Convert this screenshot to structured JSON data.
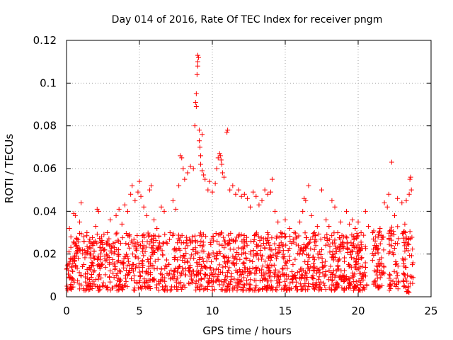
{
  "chart_data": {
    "type": "scatter",
    "title": "Day 014 of 2016, Rate Of TEC Index for receiver pngm",
    "xlabel": "GPS time / hours",
    "ylabel": "ROTI / TECUs",
    "xlim": [
      0,
      25
    ],
    "ylim": [
      0,
      0.12
    ],
    "xticks": [
      0,
      5,
      10,
      15,
      20,
      25
    ],
    "xtick_labels": [
      "0",
      "5",
      "10",
      "15",
      "20",
      "25"
    ],
    "yticks": [
      0,
      0.02,
      0.04,
      0.06,
      0.08,
      0.1,
      0.12
    ],
    "ytick_labels": [
      "0",
      "0.02",
      "0.04",
      "0.06",
      "0.08",
      "0.1",
      "0.12"
    ],
    "grid": true,
    "marker": "+",
    "series": [
      {
        "name": "ROTI",
        "color": "#ff0000",
        "points": [
          [
            0.1,
            0.015
          ],
          [
            0.2,
            0.032
          ],
          [
            0.3,
            0.028
          ],
          [
            0.4,
            0.012
          ],
          [
            0.5,
            0.039
          ],
          [
            0.6,
            0.038
          ],
          [
            0.7,
            0.024
          ],
          [
            0.8,
            0.018
          ],
          [
            0.9,
            0.035
          ],
          [
            1.0,
            0.044
          ],
          [
            1.1,
            0.022
          ],
          [
            1.2,
            0.026
          ],
          [
            1.4,
            0.03
          ],
          [
            1.6,
            0.02
          ],
          [
            1.8,
            0.024
          ],
          [
            2.0,
            0.033
          ],
          [
            2.1,
            0.041
          ],
          [
            2.2,
            0.04
          ],
          [
            2.4,
            0.028
          ],
          [
            2.6,
            0.022
          ],
          [
            2.8,
            0.03
          ],
          [
            3.0,
            0.036
          ],
          [
            3.2,
            0.025
          ],
          [
            3.4,
            0.038
          ],
          [
            3.6,
            0.041
          ],
          [
            3.8,
            0.034
          ],
          [
            4.0,
            0.043
          ],
          [
            4.2,
            0.04
          ],
          [
            4.4,
            0.048
          ],
          [
            4.5,
            0.052
          ],
          [
            4.7,
            0.045
          ],
          [
            4.9,
            0.049
          ],
          [
            5.0,
            0.054
          ],
          [
            5.1,
            0.047
          ],
          [
            5.3,
            0.042
          ],
          [
            5.5,
            0.038
          ],
          [
            5.7,
            0.05
          ],
          [
            5.8,
            0.052
          ],
          [
            6.0,
            0.036
          ],
          [
            6.2,
            0.032
          ],
          [
            6.5,
            0.042
          ],
          [
            6.7,
            0.04
          ],
          [
            6.9,
            0.025
          ],
          [
            7.1,
            0.03
          ],
          [
            7.3,
            0.045
          ],
          [
            7.5,
            0.041
          ],
          [
            7.7,
            0.052
          ],
          [
            7.8,
            0.066
          ],
          [
            7.9,
            0.065
          ],
          [
            8.0,
            0.06
          ],
          [
            8.1,
            0.055
          ],
          [
            8.3,
            0.058
          ],
          [
            8.5,
            0.061
          ],
          [
            8.7,
            0.06
          ],
          [
            8.8,
            0.08
          ],
          [
            8.85,
            0.091
          ],
          [
            8.9,
            0.089
          ],
          [
            8.9,
            0.095
          ],
          [
            8.95,
            0.104
          ],
          [
            9.0,
            0.108
          ],
          [
            9.0,
            0.11
          ],
          [
            9.0,
            0.113
          ],
          [
            9.05,
            0.112
          ],
          [
            9.1,
            0.078
          ],
          [
            9.1,
            0.073
          ],
          [
            9.15,
            0.07
          ],
          [
            9.2,
            0.066
          ],
          [
            9.2,
            0.062
          ],
          [
            9.3,
            0.076
          ],
          [
            9.3,
            0.059
          ],
          [
            9.4,
            0.057
          ],
          [
            9.5,
            0.055
          ],
          [
            9.7,
            0.05
          ],
          [
            9.8,
            0.054
          ],
          [
            10.0,
            0.049
          ],
          [
            10.2,
            0.053
          ],
          [
            10.3,
            0.06
          ],
          [
            10.4,
            0.065
          ],
          [
            10.5,
            0.067
          ],
          [
            10.55,
            0.066
          ],
          [
            10.6,
            0.064
          ],
          [
            10.65,
            0.062
          ],
          [
            10.7,
            0.058
          ],
          [
            10.8,
            0.056
          ],
          [
            11.0,
            0.077
          ],
          [
            11.05,
            0.078
          ],
          [
            11.2,
            0.05
          ],
          [
            11.4,
            0.052
          ],
          [
            11.6,
            0.048
          ],
          [
            11.8,
            0.05
          ],
          [
            12.0,
            0.047
          ],
          [
            12.2,
            0.048
          ],
          [
            12.4,
            0.046
          ],
          [
            12.6,
            0.042
          ],
          [
            12.8,
            0.049
          ],
          [
            13.0,
            0.047
          ],
          [
            13.2,
            0.043
          ],
          [
            13.4,
            0.045
          ],
          [
            13.6,
            0.05
          ],
          [
            13.8,
            0.048
          ],
          [
            14.0,
            0.049
          ],
          [
            14.1,
            0.055
          ],
          [
            14.3,
            0.04
          ],
          [
            14.5,
            0.035
          ],
          [
            14.7,
            0.03
          ],
          [
            15.0,
            0.036
          ],
          [
            15.3,
            0.032
          ],
          [
            15.6,
            0.03
          ],
          [
            15.8,
            0.028
          ],
          [
            16.0,
            0.035
          ],
          [
            16.2,
            0.04
          ],
          [
            16.3,
            0.046
          ],
          [
            16.4,
            0.045
          ],
          [
            16.6,
            0.052
          ],
          [
            16.8,
            0.038
          ],
          [
            17.0,
            0.03
          ],
          [
            17.2,
            0.033
          ],
          [
            17.5,
            0.05
          ],
          [
            17.8,
            0.036
          ],
          [
            18.0,
            0.033
          ],
          [
            18.2,
            0.045
          ],
          [
            18.4,
            0.042
          ],
          [
            18.6,
            0.03
          ],
          [
            18.8,
            0.035
          ],
          [
            19.0,
            0.028
          ],
          [
            19.2,
            0.04
          ],
          [
            19.4,
            0.034
          ],
          [
            19.6,
            0.036
          ],
          [
            19.8,
            0.032
          ],
          [
            20.0,
            0.035
          ],
          [
            20.2,
            0.03
          ],
          [
            20.5,
            0.04
          ],
          [
            20.7,
            0.033
          ],
          [
            21.0,
            0.03
          ],
          [
            21.2,
            0.028
          ],
          [
            21.5,
            0.032
          ],
          [
            21.8,
            0.044
          ],
          [
            22.0,
            0.042
          ],
          [
            22.1,
            0.048
          ],
          [
            22.3,
            0.063
          ],
          [
            22.5,
            0.038
          ],
          [
            22.7,
            0.046
          ],
          [
            23.0,
            0.044
          ],
          [
            23.2,
            0.034
          ],
          [
            23.3,
            0.045
          ],
          [
            23.5,
            0.048
          ],
          [
            23.55,
            0.055
          ],
          [
            23.6,
            0.056
          ],
          [
            23.65,
            0.05
          ]
        ],
        "dense_band": {
          "note": "dense cluster of + markers between 0.003 and ~0.03 TECUs across most hours",
          "segments": [
            {
              "x": [
                0.0,
                20.6
              ],
              "y": [
                0.003,
                0.03
              ]
            },
            {
              "x": [
                20.9,
                21.8
              ],
              "y": [
                0.004,
                0.031
              ]
            },
            {
              "x": [
                22.1,
                22.8
              ],
              "y": [
                0.003,
                0.033
              ]
            },
            {
              "x": [
                23.0,
                23.8
              ],
              "y": [
                0.002,
                0.032
              ]
            }
          ]
        }
      }
    ]
  }
}
